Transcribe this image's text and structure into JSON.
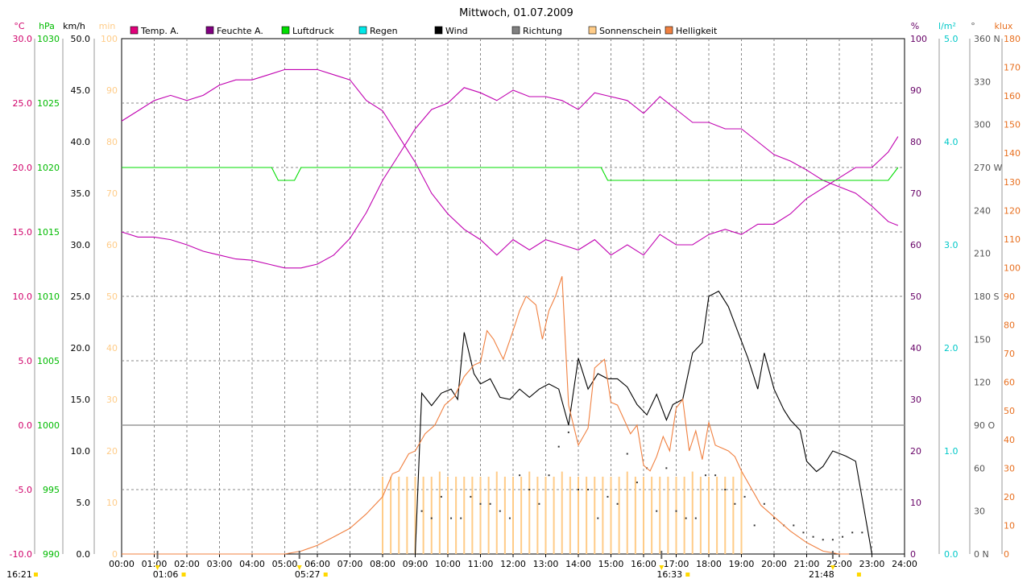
{
  "chart_data": {
    "type": "line",
    "title": "Mittwoch, 01.07.2009",
    "x_ticks": [
      "00:00",
      "01:00",
      "02:00",
      "03:00",
      "04:00",
      "05:00",
      "06:00",
      "07:00",
      "08:00",
      "09:00",
      "10:00",
      "11:00",
      "12:00",
      "13:00",
      "14:00",
      "15:00",
      "16:00",
      "17:00",
      "18:00",
      "19:00",
      "20:00",
      "21:00",
      "22:00",
      "23:00",
      "24:00"
    ],
    "x_range_hours": [
      0,
      24
    ],
    "grid": true,
    "legend_position": "top",
    "axes": [
      {
        "unit": "°C",
        "color": "#d0006a",
        "ticks": [
          "30.0",
          "25.0",
          "20.0",
          "15.0",
          "10.0",
          "5.0",
          "0.0",
          "-5.0",
          "-10.0"
        ],
        "range": [
          -10,
          30
        ]
      },
      {
        "unit": "hPa",
        "color": "#00bb00",
        "ticks": [
          "1030",
          "1025",
          "1020",
          "1015",
          "1010",
          "1005",
          "1000",
          "995",
          "990"
        ],
        "range": [
          990,
          1030
        ]
      },
      {
        "unit": "km/h",
        "color": "#000000",
        "ticks": [
          "50.0",
          "45.0",
          "40.0",
          "35.0",
          "30.0",
          "25.0",
          "20.0",
          "15.0",
          "10.0",
          "5.0",
          "0.0"
        ],
        "range": [
          0,
          50
        ]
      },
      {
        "unit": "min",
        "color": "#ffcc88",
        "ticks": [
          "100",
          "90",
          "80",
          "70",
          "60",
          "50",
          "40",
          "30",
          "20",
          "10",
          "0"
        ],
        "range": [
          0,
          100
        ]
      },
      {
        "unit": "%",
        "color": "#660066",
        "ticks": [
          "100",
          "90",
          "80",
          "70",
          "60",
          "50",
          "40",
          "30",
          "20",
          "10",
          "0"
        ],
        "range": [
          0,
          100
        ]
      },
      {
        "unit": "l/m²",
        "color": "#00c8c8",
        "ticks": [
          "5.0",
          "4.0",
          "3.0",
          "2.0",
          "1.0",
          "0.0"
        ],
        "range": [
          0,
          5
        ]
      },
      {
        "unit": "°",
        "color": "#555555",
        "ticks": [
          "360 N",
          "330",
          "300",
          "270 W",
          "240",
          "210",
          "180 S",
          "150",
          "120",
          "90  O",
          "60",
          "30",
          "0  N"
        ],
        "range": [
          0,
          360
        ]
      },
      {
        "unit": "klux",
        "color": "#e87020",
        "ticks": [
          "180",
          "170",
          "160",
          "150",
          "140",
          "130",
          "120",
          "110",
          "100",
          "90",
          "80",
          "70",
          "60",
          "50",
          "40",
          "30",
          "20",
          "10",
          "0"
        ],
        "range": [
          0,
          180
        ]
      }
    ],
    "legend": [
      {
        "label": "Temp. A.",
        "color": "#e0007a"
      },
      {
        "label": "Feuchte A.",
        "color": "#800080"
      },
      {
        "label": "Luftdruck",
        "color": "#00dd00"
      },
      {
        "label": "Regen",
        "color": "#00e8e8"
      },
      {
        "label": "Wind",
        "color": "#000000"
      },
      {
        "label": "Richtung",
        "color": "#808080"
      },
      {
        "label": "Sonnenschein",
        "color": "#ffcc88"
      },
      {
        "label": "Helligkeit",
        "color": "#f08040"
      }
    ],
    "series": [
      {
        "name": "Temp. A.",
        "axis": "°C",
        "color": "#c000b0",
        "x": [
          0,
          0.5,
          1,
          1.5,
          2,
          2.5,
          3,
          3.5,
          4,
          4.5,
          5,
          5.5,
          6,
          6.5,
          7,
          7.5,
          8,
          8.5,
          9,
          9.5,
          10,
          10.5,
          11,
          11.5,
          12,
          12.5,
          13,
          13.5,
          14,
          14.5,
          15,
          15.5,
          16,
          16.5,
          17,
          17.5,
          18,
          18.5,
          19,
          19.5,
          20,
          20.5,
          21,
          21.5,
          22,
          22.5,
          23,
          23.5,
          23.8
        ],
        "y": [
          15.0,
          14.6,
          14.6,
          14.4,
          14.0,
          13.5,
          13.2,
          12.9,
          12.8,
          12.5,
          12.2,
          12.2,
          12.5,
          13.2,
          14.5,
          16.5,
          19.0,
          21.0,
          23.0,
          24.5,
          25.0,
          26.2,
          25.8,
          25.2,
          26.0,
          25.5,
          25.5,
          25.2,
          24.5,
          25.8,
          25.5,
          25.2,
          24.2,
          25.5,
          24.5,
          23.5,
          23.5,
          23.0,
          23.0,
          22.0,
          21.0,
          20.5,
          19.8,
          19.0,
          18.5,
          18.0,
          17.0,
          15.8,
          15.5
        ]
      },
      {
        "name": "Feuchte A.",
        "axis": "%",
        "color": "#c000b0",
        "x": [
          0,
          0.5,
          1,
          1.5,
          2,
          2.5,
          3,
          3.5,
          4,
          4.5,
          5,
          5.5,
          6,
          6.5,
          7,
          7.5,
          8,
          8.5,
          9,
          9.5,
          10,
          10.5,
          11,
          11.5,
          12,
          12.5,
          13,
          13.5,
          14,
          14.5,
          15,
          15.5,
          16,
          16.5,
          17,
          17.5,
          18,
          18.5,
          19,
          19.5,
          20,
          20.5,
          21,
          21.5,
          22,
          22.5,
          23,
          23.5,
          23.8
        ],
        "y": [
          84,
          86,
          88,
          89,
          88,
          89,
          91,
          92,
          92,
          93,
          94,
          94,
          94,
          93,
          92,
          88,
          86,
          81,
          76,
          70,
          66,
          63,
          61,
          58,
          61,
          59,
          61,
          60,
          59,
          61,
          58,
          60,
          58,
          62,
          60,
          60,
          62,
          63,
          62,
          64,
          64,
          66,
          69,
          71,
          73,
          75,
          75,
          78,
          81
        ]
      },
      {
        "name": "Luftdruck",
        "axis": "hPa",
        "color": "#00dd00",
        "x": [
          0,
          4.6,
          4.8,
          5.3,
          5.5,
          14.7,
          14.9,
          23.5,
          23.8
        ],
        "y": [
          1020.0,
          1020.0,
          1019.0,
          1019.0,
          1020.0,
          1020.0,
          1019.0,
          1019.0,
          1020.0
        ]
      },
      {
        "name": "Wind",
        "axis": "km/h",
        "color": "#000000",
        "x": [
          9.0,
          9.2,
          9.5,
          9.8,
          10.1,
          10.3,
          10.5,
          10.8,
          11.0,
          11.3,
          11.6,
          11.9,
          12.2,
          12.5,
          12.8,
          13.1,
          13.4,
          13.7,
          14.0,
          14.3,
          14.6,
          14.9,
          15.2,
          15.5,
          15.8,
          16.1,
          16.4,
          16.7,
          16.9,
          17.2,
          17.5,
          17.8,
          18.0,
          18.3,
          18.6,
          18.9,
          19.2,
          19.5,
          19.7,
          20.0,
          20.3,
          20.5,
          20.8,
          21.0,
          21.3,
          21.5,
          21.8,
          22.2,
          22.5,
          23.0
        ],
        "y": [
          0,
          15.6,
          14.4,
          15.6,
          16.0,
          15.0,
          21.5,
          17.5,
          16.5,
          17.0,
          15.2,
          15.0,
          16.0,
          15.2,
          16.0,
          16.5,
          16.0,
          12.5,
          19.0,
          16.0,
          17.5,
          17.0,
          17.0,
          16.2,
          14.5,
          13.5,
          15.5,
          13.0,
          14.5,
          15.0,
          19.5,
          20.5,
          25.0,
          25.5,
          24.0,
          21.5,
          19.0,
          16.0,
          19.5,
          16.0,
          14.0,
          13.0,
          12.0,
          9.0,
          8.0,
          8.5,
          10.0,
          9.5,
          9.0,
          0
        ]
      },
      {
        "name": "Richtung",
        "axis": "°",
        "color": "#333333",
        "x": [
          9.2,
          9.5,
          9.8,
          10.1,
          10.4,
          10.7,
          11.0,
          11.3,
          11.6,
          11.9,
          12.2,
          12.5,
          12.8,
          13.1,
          13.4,
          13.7,
          14.0,
          14.3,
          14.6,
          14.9,
          15.2,
          15.5,
          15.8,
          16.1,
          16.4,
          16.7,
          17.0,
          17.3,
          17.6,
          17.9,
          18.2,
          18.5,
          18.8,
          19.1,
          19.4,
          19.7,
          20.0,
          20.3,
          20.6,
          20.9,
          21.2,
          21.5,
          21.8,
          22.1,
          22.4,
          22.7
        ],
        "y": [
          30,
          25,
          40,
          25,
          25,
          40,
          35,
          35,
          30,
          25,
          55,
          45,
          35,
          55,
          75,
          85,
          45,
          45,
          25,
          40,
          35,
          70,
          50,
          60,
          30,
          60,
          30,
          25,
          25,
          55,
          55,
          45,
          35,
          40,
          20,
          35,
          25,
          20,
          20,
          15,
          12,
          10,
          10,
          12,
          15,
          15
        ]
      },
      {
        "name": "Helligkeit",
        "axis": "klux",
        "color": "#f08040",
        "x": [
          0,
          5.0,
          5.5,
          6.0,
          6.5,
          7.0,
          7.5,
          8.0,
          8.3,
          8.5,
          8.8,
          9.0,
          9.3,
          9.6,
          9.9,
          10.2,
          10.5,
          10.8,
          11.0,
          11.2,
          11.4,
          11.7,
          12.0,
          12.2,
          12.4,
          12.7,
          12.9,
          13.1,
          13.3,
          13.5,
          13.7,
          14.0,
          14.3,
          14.5,
          14.8,
          15.0,
          15.2,
          15.4,
          15.6,
          15.8,
          16.0,
          16.2,
          16.4,
          16.6,
          16.8,
          17.0,
          17.2,
          17.4,
          17.6,
          17.8,
          18.0,
          18.2,
          18.4,
          18.6,
          18.8,
          19.0,
          19.3,
          19.6,
          20.0,
          20.5,
          21.0,
          21.5,
          22.0,
          22.3
        ],
        "y": [
          0,
          0,
          1,
          3,
          6,
          9,
          14,
          20,
          28,
          29,
          35,
          36,
          42,
          45,
          52,
          55,
          62,
          66,
          67,
          78,
          75,
          68,
          78,
          85,
          90,
          87,
          75,
          85,
          90,
          97,
          52,
          38,
          44,
          65,
          68,
          53,
          52,
          47,
          42,
          45,
          31,
          29,
          34,
          41,
          36,
          51,
          54,
          36,
          43,
          33,
          46,
          38,
          37,
          36,
          34,
          29,
          23,
          17,
          13,
          8,
          4,
          1,
          0,
          0
        ]
      },
      {
        "name": "Sonnenschein",
        "axis": "min",
        "type": "bar",
        "color": "#ffcc88",
        "x": [
          8.0,
          8.25,
          8.5,
          8.75,
          9.0,
          9.25,
          9.5,
          9.75,
          10.0,
          10.25,
          10.5,
          10.75,
          11.0,
          11.25,
          11.5,
          11.75,
          12.0,
          12.25,
          12.5,
          12.75,
          13.0,
          13.25,
          13.5,
          13.75,
          14.0,
          14.25,
          14.5,
          14.75,
          15.0,
          15.25,
          15.5,
          15.75,
          16.0,
          16.25,
          16.5,
          16.75,
          17.0,
          17.25,
          17.5,
          17.75,
          18.0,
          18.25,
          18.5,
          18.75,
          19.0
        ],
        "y": [
          15,
          15,
          15,
          15,
          15,
          15,
          15,
          16,
          15,
          15,
          15,
          15,
          15,
          15,
          16,
          15,
          15,
          15,
          16,
          15,
          15,
          15,
          16,
          15,
          15,
          15,
          15,
          15,
          15,
          15,
          16,
          15,
          15,
          15,
          15,
          15,
          15,
          15,
          16,
          15,
          15,
          15,
          15,
          15,
          16
        ]
      }
    ],
    "markers": [
      {
        "label": "16:21",
        "x": 0
      },
      {
        "label": "01:06",
        "x": 1.1
      },
      {
        "label": "05:27",
        "x": 5.45
      },
      {
        "label": "16:33",
        "x": 16.55
      },
      {
        "label": "21:48",
        "x": 21.8
      }
    ]
  }
}
